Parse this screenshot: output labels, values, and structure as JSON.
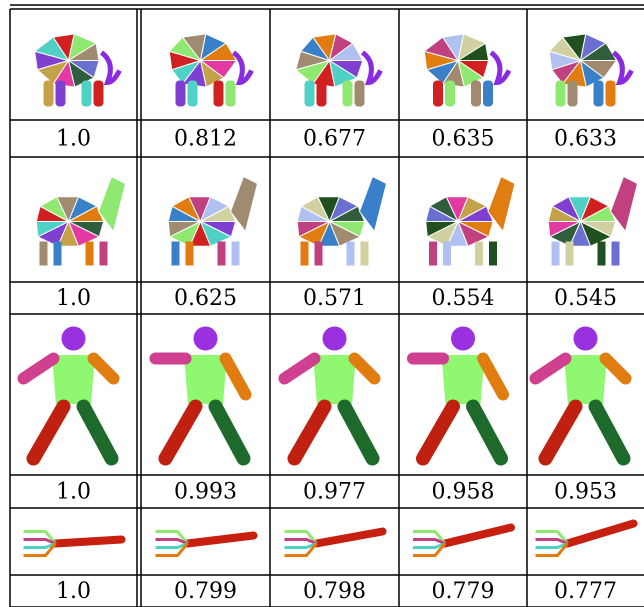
{
  "table": {
    "rows": [
      {
        "scores": [
          "1.0",
          "0.812",
          "0.677",
          "0.635",
          "0.633"
        ]
      },
      {
        "scores": [
          "1.0",
          "0.625",
          "0.571",
          "0.554",
          "0.545"
        ]
      },
      {
        "scores": [
          "1.0",
          "0.993",
          "0.977",
          "0.958",
          "0.953"
        ]
      },
      {
        "scores": [
          "1.0",
          "0.799",
          "0.798",
          "0.779",
          "0.777"
        ]
      }
    ]
  }
}
